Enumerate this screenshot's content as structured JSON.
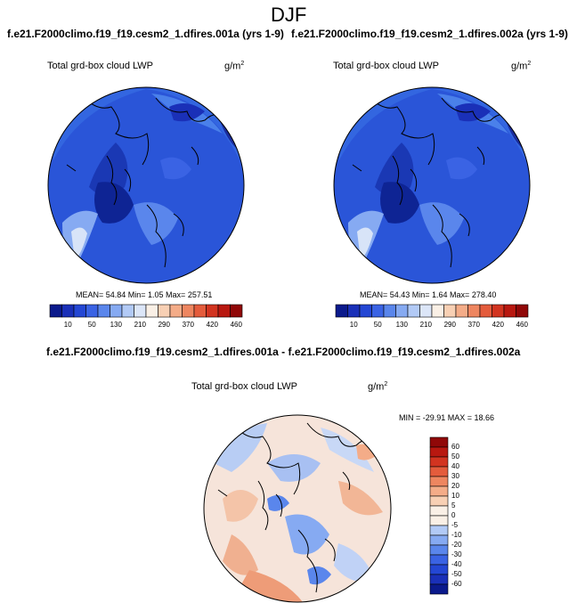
{
  "season": "DJF",
  "panels": {
    "left": {
      "case_title": "f.e21.F2000climo.f19_f19.cesm2_1.dfires.001a (yrs 1-9)",
      "variable": "Total grd-box cloud LWP",
      "units": "g/m",
      "units_exp": "2",
      "stats": "MEAN=  54.84  Min=   1.05  Max= 257.51"
    },
    "right": {
      "case_title": "f.e21.F2000climo.f19_f19.cesm2_1.dfires.002a (yrs 1-9)",
      "variable": "Total grd-box cloud LWP",
      "units": "g/m",
      "units_exp": "2",
      "stats": "MEAN=  54.43  Min=   1.64  Max= 278.40"
    },
    "diff": {
      "case_title": "f.e21.F2000climo.f19_f19.cesm2_1.dfires.001a - f.e21.F2000climo.f19_f19.cesm2_1.dfires.002a",
      "variable": "Total grd-box cloud LWP",
      "units": "g/m",
      "units_exp": "2",
      "stats": "MIN = -29.91  MAX =  18.66"
    }
  },
  "abs_colorbar": {
    "labels": [
      "10",
      "50",
      "130",
      "210",
      "290",
      "370",
      "420",
      "460"
    ],
    "colors": [
      "#0b1a8c",
      "#1a30b8",
      "#2447d4",
      "#3a63e4",
      "#5a86ec",
      "#86aaf2",
      "#b2caf6",
      "#dce6f8",
      "#faf0e6",
      "#f8d0b4",
      "#f4ac88",
      "#ee8660",
      "#e45c3c",
      "#d23420",
      "#b81810",
      "#900808"
    ]
  },
  "diff_colorbar": {
    "labels": [
      "60",
      "50",
      "40",
      "30",
      "20",
      "10",
      "5",
      "0",
      "-5",
      "-10",
      "-20",
      "-30",
      "-40",
      "-50",
      "-60"
    ],
    "colors": [
      "#900808",
      "#b81810",
      "#d23420",
      "#e45c3c",
      "#ee8660",
      "#f4ac88",
      "#f8d0b4",
      "#faf0e6",
      "#faf0e6",
      "#b2caf6",
      "#86aaf2",
      "#5a86ec",
      "#3a63e4",
      "#2447d4",
      "#1a30b8",
      "#0b1a8c"
    ]
  }
}
